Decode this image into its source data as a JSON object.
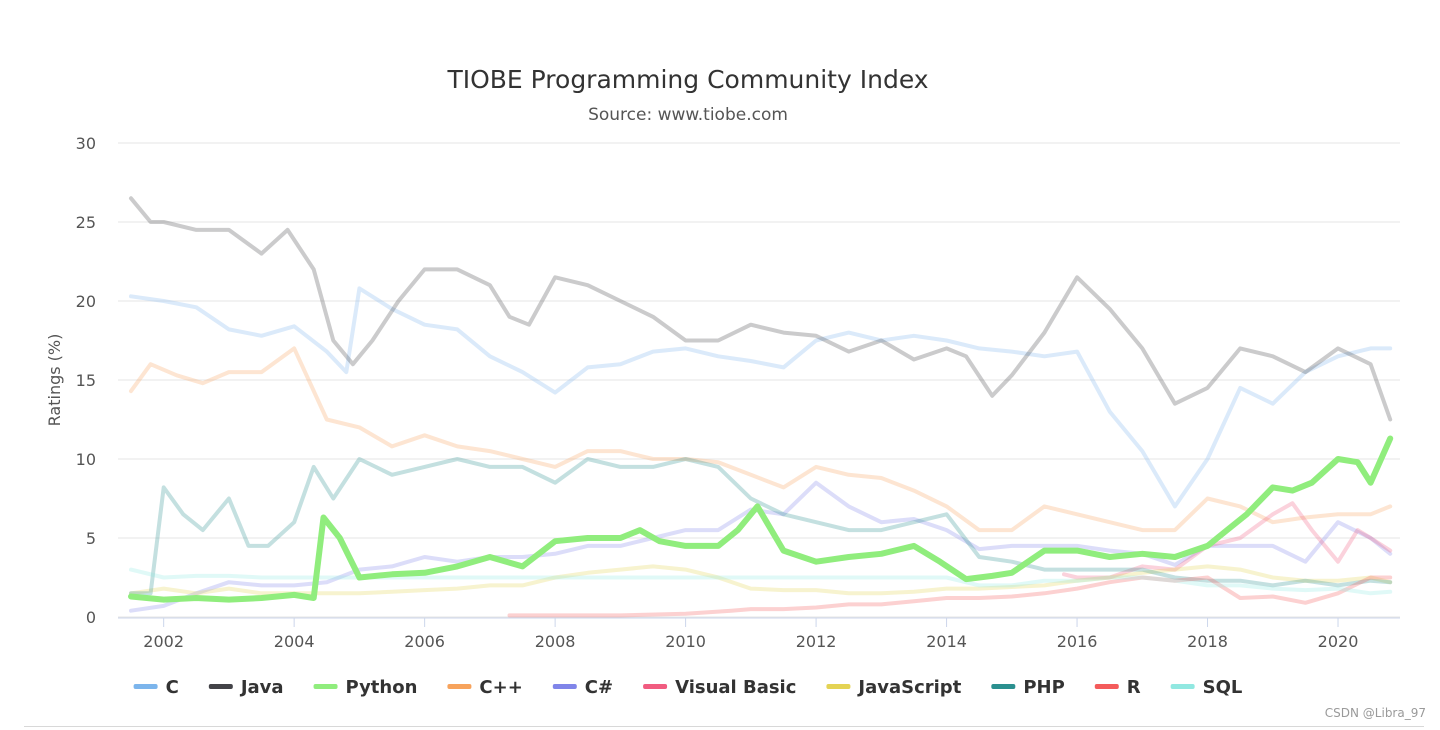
{
  "chart_data": {
    "type": "line",
    "title": "TIOBE Programming Community Index",
    "subtitle": "Source: www.tiobe.com",
    "xlabel": "",
    "ylabel": "Ratings (%)",
    "xlim": [
      2001.3,
      2020.95
    ],
    "ylim": [
      0,
      30
    ],
    "x_ticks": [
      2002,
      2004,
      2006,
      2008,
      2010,
      2012,
      2014,
      2016,
      2018,
      2020
    ],
    "y_ticks": [
      0,
      5,
      10,
      15,
      20,
      25,
      30
    ],
    "grid": true,
    "legend_position": "bottom-center",
    "highlighted_series": "Python",
    "series": [
      {
        "name": "C",
        "color": "#7cb5ec",
        "x": [
          2001.5,
          2002,
          2002.5,
          2003,
          2003.5,
          2004,
          2004.5,
          2004.8,
          2005,
          2005.5,
          2006,
          2006.5,
          2007,
          2007.5,
          2008,
          2008.5,
          2009,
          2009.5,
          2010,
          2010.5,
          2011,
          2011.5,
          2012,
          2012.5,
          2013,
          2013.5,
          2014,
          2014.5,
          2015,
          2015.5,
          2016,
          2016.5,
          2017,
          2017.5,
          2018,
          2018.5,
          2019,
          2019.5,
          2020,
          2020.5,
          2020.8
        ],
        "values": [
          20.3,
          20,
          19.6,
          18.2,
          17.8,
          18.4,
          16.8,
          15.5,
          20.8,
          19.5,
          18.5,
          18.2,
          16.5,
          15.5,
          14.2,
          15.8,
          16,
          16.8,
          17,
          16.5,
          16.2,
          15.8,
          17.5,
          18,
          17.5,
          17.8,
          17.5,
          17,
          16.8,
          16.5,
          16.8,
          13,
          10.5,
          7,
          10,
          14.5,
          13.5,
          15.5,
          16.5,
          17,
          17
        ]
      },
      {
        "name": "Java",
        "color": "#434348",
        "x": [
          2001.5,
          2001.8,
          2002,
          2002.5,
          2003,
          2003.5,
          2003.9,
          2004.3,
          2004.6,
          2004.9,
          2005.2,
          2005.6,
          2006,
          2006.5,
          2007,
          2007.3,
          2007.6,
          2008,
          2008.5,
          2009,
          2009.5,
          2010,
          2010.5,
          2011,
          2011.5,
          2012,
          2012.5,
          2013,
          2013.5,
          2014,
          2014.3,
          2014.7,
          2015,
          2015.5,
          2016,
          2016.5,
          2017,
          2017.5,
          2018,
          2018.5,
          2019,
          2019.5,
          2020,
          2020.5,
          2020.8
        ],
        "values": [
          26.5,
          25,
          25,
          24.5,
          24.5,
          23,
          24.5,
          22,
          17.5,
          16,
          17.5,
          20,
          22,
          22,
          21,
          19,
          18.5,
          21.5,
          21,
          20,
          19,
          17.5,
          17.5,
          18.5,
          18,
          17.8,
          16.8,
          17.5,
          16.3,
          17,
          16.5,
          14,
          15.3,
          18,
          21.5,
          19.5,
          17,
          13.5,
          14.5,
          17,
          16.5,
          15.5,
          17,
          16,
          12.5
        ]
      },
      {
        "name": "Python",
        "color": "#90ed7d",
        "x": [
          2001.5,
          2002,
          2002.5,
          2003,
          2003.5,
          2004,
          2004.3,
          2004.45,
          2004.7,
          2005,
          2005.5,
          2006,
          2006.5,
          2007,
          2007.5,
          2008,
          2008.5,
          2009,
          2009.3,
          2009.6,
          2010,
          2010.5,
          2010.8,
          2011.1,
          2011.5,
          2012,
          2012.5,
          2013,
          2013.5,
          2013.9,
          2014.3,
          2014.7,
          2015,
          2015.5,
          2016,
          2016.5,
          2017,
          2017.5,
          2018,
          2018.3,
          2018.6,
          2019,
          2019.3,
          2019.6,
          2020,
          2020.3,
          2020.5,
          2020.8
        ],
        "values": [
          1.3,
          1.1,
          1.2,
          1.1,
          1.2,
          1.4,
          1.2,
          6.3,
          5,
          2.5,
          2.7,
          2.8,
          3.2,
          3.8,
          3.2,
          4.8,
          5,
          5,
          5.5,
          4.8,
          4.5,
          4.5,
          5.5,
          7,
          4.2,
          3.5,
          3.8,
          4,
          4.5,
          3.5,
          2.4,
          2.6,
          2.8,
          4.2,
          4.2,
          3.8,
          4,
          3.8,
          4.5,
          5.5,
          6.5,
          8.2,
          8,
          8.5,
          10,
          9.8,
          8.5,
          11.3
        ]
      },
      {
        "name": "C++",
        "color": "#f7a35c",
        "x": [
          2001.5,
          2001.8,
          2002.2,
          2002.6,
          2003,
          2003.5,
          2004,
          2004.5,
          2005,
          2005.5,
          2006,
          2006.5,
          2007,
          2007.5,
          2008,
          2008.5,
          2009,
          2009.5,
          2010,
          2010.5,
          2011,
          2011.5,
          2012,
          2012.5,
          2013,
          2013.5,
          2014,
          2014.5,
          2015,
          2015.5,
          2016,
          2016.5,
          2017,
          2017.5,
          2018,
          2018.5,
          2019,
          2019.5,
          2020,
          2020.5,
          2020.8
        ],
        "values": [
          14.3,
          16,
          15.3,
          14.8,
          15.5,
          15.5,
          17,
          12.5,
          12,
          10.8,
          11.5,
          10.8,
          10.5,
          10,
          9.5,
          10.5,
          10.5,
          10,
          10,
          9.8,
          9,
          8.2,
          9.5,
          9,
          8.8,
          8,
          7,
          5.5,
          5.5,
          7,
          6.5,
          6,
          5.5,
          5.5,
          7.5,
          7,
          6,
          6.3,
          6.5,
          6.5,
          7
        ]
      },
      {
        "name": "C#",
        "color": "#8085e9",
        "x": [
          2001.5,
          2002,
          2002.5,
          2003,
          2003.5,
          2004,
          2004.5,
          2005,
          2005.5,
          2006,
          2006.5,
          2007,
          2007.5,
          2008,
          2008.5,
          2009,
          2009.5,
          2010,
          2010.5,
          2011,
          2011.5,
          2012,
          2012.5,
          2013,
          2013.5,
          2014,
          2014.5,
          2015,
          2015.5,
          2016,
          2016.5,
          2017,
          2017.5,
          2018,
          2018.5,
          2019,
          2019.5,
          2020,
          2020.5,
          2020.8
        ],
        "values": [
          0.4,
          0.7,
          1.5,
          2.2,
          2,
          2,
          2.2,
          3,
          3.2,
          3.8,
          3.5,
          3.8,
          3.8,
          4,
          4.5,
          4.5,
          5,
          5.5,
          5.5,
          6.8,
          6.5,
          8.5,
          7,
          6,
          6.2,
          5.5,
          4.3,
          4.5,
          4.5,
          4.5,
          4.2,
          4,
          3.3,
          4.5,
          4.5,
          4.5,
          3.5,
          6,
          5,
          4
        ]
      },
      {
        "name": "Visual Basic",
        "color": "#f15c80",
        "x": [
          2015.8,
          2016,
          2016.5,
          2017,
          2017.5,
          2018,
          2018.5,
          2019,
          2019.3,
          2019.6,
          2020,
          2020.3,
          2020.5,
          2020.8
        ],
        "values": [
          2.7,
          2.5,
          2.5,
          3.2,
          3,
          4.5,
          5,
          6.5,
          7.2,
          5.5,
          3.5,
          5.5,
          5,
          4.2
        ]
      },
      {
        "name": "JavaScript",
        "color": "#e4d354",
        "x": [
          2001.5,
          2002,
          2002.5,
          2003,
          2003.5,
          2004,
          2004.5,
          2005,
          2005.5,
          2006,
          2006.5,
          2007,
          2007.5,
          2008,
          2008.5,
          2009,
          2009.5,
          2010,
          2010.5,
          2011,
          2011.5,
          2012,
          2012.5,
          2013,
          2013.5,
          2014,
          2014.5,
          2015,
          2015.5,
          2016,
          2016.5,
          2017,
          2017.5,
          2018,
          2018.5,
          2019,
          2019.5,
          2020,
          2020.5,
          2020.8
        ],
        "values": [
          1.5,
          1.8,
          1.5,
          1.8,
          1.5,
          1.5,
          1.5,
          1.5,
          1.6,
          1.7,
          1.8,
          2,
          2,
          2.5,
          2.8,
          3,
          3.2,
          3,
          2.5,
          1.8,
          1.7,
          1.7,
          1.5,
          1.5,
          1.6,
          1.8,
          1.8,
          1.9,
          2,
          2.3,
          2.5,
          2.8,
          3,
          3.2,
          3,
          2.5,
          2.3,
          2.3,
          2.5,
          2.2
        ]
      },
      {
        "name": "PHP",
        "color": "#2b908f",
        "x": [
          2001.5,
          2001.8,
          2002,
          2002.3,
          2002.6,
          2003,
          2003.3,
          2003.6,
          2004,
          2004.3,
          2004.6,
          2005,
          2005.5,
          2006,
          2006.5,
          2007,
          2007.5,
          2008,
          2008.5,
          2009,
          2009.5,
          2010,
          2010.5,
          2011,
          2011.5,
          2012,
          2012.5,
          2013,
          2013.5,
          2014,
          2014.5,
          2015,
          2015.5,
          2016,
          2016.5,
          2017,
          2017.5,
          2018,
          2018.5,
          2019,
          2019.5,
          2020,
          2020.5,
          2020.8
        ],
        "values": [
          1.5,
          1.5,
          8.2,
          6.5,
          5.5,
          7.5,
          4.5,
          4.5,
          6,
          9.5,
          7.5,
          10,
          9,
          9.5,
          10,
          9.5,
          9.5,
          8.5,
          10,
          9.5,
          9.5,
          10,
          9.5,
          7.5,
          6.5,
          6,
          5.5,
          5.5,
          6,
          6.5,
          3.8,
          3.5,
          3,
          3,
          3,
          3,
          2.5,
          2.3,
          2.3,
          2,
          2.3,
          2,
          2.3,
          2.2
        ]
      },
      {
        "name": "R",
        "color": "#f45b5b",
        "x": [
          2007.3,
          2008,
          2009,
          2010,
          2010.7,
          2011,
          2011.5,
          2012,
          2012.5,
          2013,
          2013.5,
          2014,
          2014.5,
          2015,
          2015.5,
          2016,
          2016.5,
          2017,
          2017.5,
          2018,
          2018.5,
          2019,
          2019.5,
          2020,
          2020.5,
          2020.8
        ],
        "values": [
          0.1,
          0.1,
          0.1,
          0.2,
          0.4,
          0.5,
          0.5,
          0.6,
          0.8,
          0.8,
          1,
          1.2,
          1.2,
          1.3,
          1.5,
          1.8,
          2.2,
          2.5,
          2.3,
          2.5,
          1.2,
          1.3,
          0.9,
          1.5,
          2.5,
          2.5
        ]
      },
      {
        "name": "SQL",
        "color": "#91e8e1",
        "x": [
          2001.5,
          2002,
          2002.5,
          2003,
          2003.5,
          2004,
          2004.5,
          2005,
          2006,
          2007,
          2008,
          2009,
          2010,
          2011,
          2012,
          2013,
          2014,
          2014.5,
          2015,
          2015.5,
          2016,
          2016.5,
          2017,
          2017.5,
          2018,
          2018.5,
          2019,
          2019.5,
          2020,
          2020.5,
          2020.8
        ],
        "values": [
          3,
          2.5,
          2.6,
          2.6,
          2.5,
          2.5,
          2.5,
          2.5,
          2.5,
          2.5,
          2.5,
          2.5,
          2.5,
          2.5,
          2.5,
          2.5,
          2.5,
          2,
          2,
          2.3,
          2.3,
          2.5,
          2.5,
          2.3,
          2,
          2,
          1.8,
          1.7,
          1.8,
          1.5,
          1.6
        ]
      }
    ]
  },
  "watermark": "CSDN @Libra_97"
}
